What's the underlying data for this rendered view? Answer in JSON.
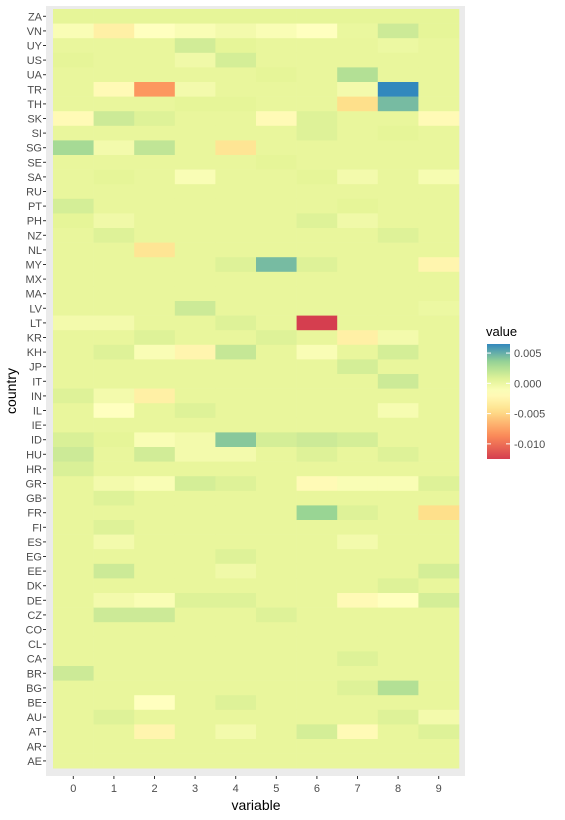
{
  "chart_data": {
    "type": "heatmap",
    "xlabel": "variable",
    "ylabel": "country",
    "legend_title": "value",
    "legend_placement": "right",
    "x_categories": [
      "0",
      "1",
      "2",
      "3",
      "4",
      "5",
      "6",
      "7",
      "8",
      "9"
    ],
    "y_categories": [
      "ZA",
      "VN",
      "UY",
      "US",
      "UA",
      "TR",
      "TH",
      "SK",
      "SI",
      "SG",
      "SE",
      "SA",
      "RU",
      "PT",
      "PH",
      "NZ",
      "NL",
      "MY",
      "MX",
      "MA",
      "LV",
      "LT",
      "KR",
      "KH",
      "JP",
      "IT",
      "IN",
      "IL",
      "IE",
      "ID",
      "HU",
      "HR",
      "GR",
      "GB",
      "FR",
      "FI",
      "ES",
      "EG",
      "EE",
      "DK",
      "DE",
      "CZ",
      "CO",
      "CL",
      "CA",
      "BR",
      "BG",
      "BE",
      "AU",
      "AT",
      "AR",
      "AE"
    ],
    "values": {
      "ZA": [
        0.0005,
        0.0005,
        0.0005,
        0.0005,
        0.0005,
        0.0005,
        0.0005,
        0.0005,
        0.0005,
        0.0005
      ],
      "VN": [
        -0.001,
        -0.003,
        -0.0015,
        -0.001,
        -0.0005,
        -0.001,
        -0.0015,
        0.0002,
        0.0015,
        0.0005
      ],
      "UY": [
        0.0003,
        0.0003,
        0.0003,
        0.0013,
        0.0005,
        0.0003,
        0.0003,
        0.0003,
        0,
        0.0003
      ],
      "US": [
        0.0005,
        0.0003,
        0.0003,
        -0.0003,
        0.0012,
        0.0003,
        0.0003,
        0.0003,
        0.0003,
        0.0003
      ],
      "UA": [
        0.0003,
        0.0003,
        0.0003,
        0.0003,
        0.0003,
        0.0005,
        0.0003,
        0.0025,
        0.0003,
        0.0003
      ],
      "TR": [
        0.0003,
        -0.002,
        -0.008,
        -0.0005,
        0.0003,
        0.0003,
        0.0003,
        -0.0005,
        0.0065,
        0.0003
      ],
      "TH": [
        0.0003,
        0.0003,
        0.0003,
        0.0005,
        0.0005,
        0.0003,
        0.0003,
        -0.0045,
        0.0045,
        0.0003
      ],
      "SK": [
        -0.002,
        0.0015,
        0.0008,
        0.0003,
        0.0003,
        -0.002,
        0.0008,
        0.0003,
        0.0003,
        -0.002
      ],
      "SI": [
        0.0003,
        0.0003,
        0.0003,
        0.0003,
        0.0003,
        0.0003,
        0.0008,
        0.0003,
        0.0005,
        0.0003
      ],
      "SG": [
        0.003,
        -0.0005,
        0.002,
        0.0003,
        -0.004,
        0.0003,
        0.0003,
        0.0003,
        0.0003,
        0.0003
      ],
      "SE": [
        0.0003,
        0.0003,
        0.0003,
        0.0003,
        0.0003,
        0.0005,
        0.0003,
        0.0003,
        0.0003,
        0.0003
      ],
      "SA": [
        0.0003,
        0.0005,
        0.0003,
        -0.001,
        0.0003,
        0.0003,
        0.0005,
        -0.0005,
        0.0003,
        -0.0008
      ],
      "RU": [
        0.0003,
        0.0003,
        0.0003,
        0.0003,
        0.0003,
        0.0003,
        0.0003,
        0.0003,
        0.0003,
        0.0003
      ],
      "PT": [
        0.0012,
        0.0003,
        0.0003,
        0.0003,
        0.0003,
        0.0003,
        0.0003,
        0.0005,
        0.0003,
        0.0003
      ],
      "PH": [
        0.0005,
        -0.0003,
        0.0003,
        0.0003,
        0.0003,
        0.0003,
        0.0008,
        -0.0003,
        0.0003,
        0.0003
      ],
      "NZ": [
        0.0003,
        0.0008,
        0.0003,
        0.0003,
        0.0003,
        0.0003,
        0.0003,
        0.0003,
        0.0008,
        0.0003
      ],
      "NL": [
        0.0003,
        0.0003,
        -0.004,
        0.0003,
        0.0003,
        0.0003,
        0.0003,
        0.0003,
        0.0003,
        0.0003
      ],
      "MY": [
        0.0003,
        0.0003,
        0.0003,
        0.0003,
        0.0008,
        0.0045,
        0.0008,
        0.0003,
        0.0003,
        -0.0025
      ],
      "MX": [
        0.0003,
        0.0003,
        0.0003,
        0.0003,
        0.0003,
        0.0003,
        0.0003,
        0.0003,
        0.0003,
        0.0003
      ],
      "MA": [
        0.0003,
        0.0003,
        0.0003,
        0.0003,
        0.0003,
        0.0003,
        0.0003,
        0.0003,
        0.0003,
        0.0003
      ],
      "LV": [
        0.0003,
        0.0003,
        0.0003,
        0.0015,
        0.0003,
        0.0003,
        0.0003,
        0.0003,
        0.0003,
        0
      ],
      "LT": [
        -0.0005,
        -0.0005,
        0.0003,
        0.0003,
        0.0008,
        0.0003,
        -0.0125,
        0.0003,
        0.0003,
        0.0003
      ],
      "KR": [
        0.0003,
        0.0003,
        0.0008,
        0.0003,
        0.0003,
        0.0008,
        0.0003,
        -0.003,
        -0.0005,
        0.0003
      ],
      "KH": [
        0.0003,
        0.0008,
        -0.001,
        -0.0025,
        0.0018,
        0.0003,
        -0.001,
        0.0003,
        0.0012,
        0.0003
      ],
      "JP": [
        0.0003,
        0.0003,
        0.0003,
        0.0003,
        0.0003,
        0.0003,
        0.0003,
        0.0012,
        0.0003,
        0.0003
      ],
      "IT": [
        0.0003,
        0.0003,
        0.0003,
        0.0003,
        0.0003,
        0.0003,
        0.0003,
        0.0003,
        0.0015,
        0.0003
      ],
      "IN": [
        0.0008,
        -0.0005,
        -0.003,
        0.0003,
        0.0003,
        0.0003,
        0.0003,
        0.0003,
        0.0003,
        0.0003
      ],
      "IL": [
        0.0003,
        -0.0015,
        0.0003,
        0.0008,
        0.0003,
        0.0003,
        0.0003,
        0.0003,
        -0.0008,
        0.0003
      ],
      "IE": [
        0.0003,
        0.0003,
        0.0003,
        0.0003,
        0.0003,
        0.0003,
        0.0003,
        0.0003,
        0.0003,
        0.0003
      ],
      "ID": [
        0.001,
        0.0005,
        -0.001,
        -0.0005,
        0.004,
        0.0012,
        0.0015,
        0.0012,
        0.0003,
        0.0003
      ],
      "HU": [
        0.0015,
        0.0003,
        0.0013,
        -0.0005,
        -0.0005,
        0.0003,
        0.0008,
        0.0003,
        0.0008,
        0.0003
      ],
      "HR": [
        0.001,
        0.0003,
        0.0003,
        0.0003,
        0.0003,
        0.0003,
        0.0003,
        0.0003,
        0.0003,
        0.0003
      ],
      "GR": [
        0.0003,
        -0.0005,
        -0.001,
        0.0012,
        0.0008,
        0.0003,
        -0.002,
        -0.001,
        -0.001,
        0.0008
      ],
      "GB": [
        0.0003,
        0.0008,
        0.0003,
        0.0003,
        0.0003,
        0.0003,
        0.0003,
        0.0003,
        0.0003,
        0.0003
      ],
      "FR": [
        0.0003,
        0.0003,
        0.0003,
        0.0003,
        0.0003,
        0.0003,
        0.0035,
        0.0008,
        0.0003,
        -0.0045
      ],
      "FI": [
        0.0003,
        0.0008,
        0.0003,
        0.0003,
        0.0003,
        0.0003,
        0.0003,
        0.0003,
        0.0003,
        0.0003
      ],
      "ES": [
        0.0003,
        -0.0005,
        0.0003,
        0.0003,
        0.0003,
        0.0003,
        0.0003,
        -0.0005,
        0.0003,
        0.0003
      ],
      "EG": [
        0.0003,
        0.0003,
        0.0003,
        0.0003,
        0.0008,
        0.0003,
        0.0003,
        0.0003,
        0.0003,
        0.0003
      ],
      "EE": [
        0.0003,
        0.0015,
        0.0003,
        0.0003,
        -0.0003,
        0.0003,
        0.0003,
        0.0003,
        0.0003,
        0.0012
      ],
      "DK": [
        0.0003,
        0.0003,
        0.0003,
        0.0003,
        0.0003,
        0.0003,
        0.0003,
        0.0003,
        0.0008,
        0.0003
      ],
      "DE": [
        0.0003,
        -0.0005,
        -0.001,
        0.0008,
        0.0008,
        0.0003,
        0.0003,
        -0.002,
        -0.0015,
        0.0012
      ],
      "CZ": [
        0.0003,
        0.0015,
        0.0015,
        0.0003,
        0.0003,
        0.0008,
        0.0003,
        0.0003,
        0.0003,
        0.0003
      ],
      "CO": [
        0.0003,
        0.0003,
        0.0003,
        0.0003,
        0.0003,
        0.0003,
        0.0003,
        0.0003,
        0.0003,
        0.0003
      ],
      "CL": [
        0.0003,
        0.0003,
        0.0003,
        0.0003,
        0.0003,
        0.0003,
        0.0003,
        0.0003,
        0.0003,
        0.0003
      ],
      "CA": [
        0.0003,
        0.0003,
        0.0003,
        0.0003,
        0.0003,
        0.0003,
        0.0003,
        0.0008,
        0.0003,
        0.0003
      ],
      "BR": [
        0.0015,
        0.0003,
        0.0003,
        0.0003,
        0.0003,
        0.0003,
        0.0003,
        0.0003,
        0.0003,
        0.0003
      ],
      "BG": [
        0.0003,
        0.0003,
        0.0003,
        0.0003,
        0.0003,
        0.0003,
        0.0003,
        0.0008,
        0.0025,
        0.0003
      ],
      "BE": [
        0.0003,
        0.0003,
        -0.0015,
        0.0003,
        0.0008,
        0.0003,
        0.0003,
        0.0003,
        0.0003,
        0.0003
      ],
      "AU": [
        0.0003,
        0.0008,
        0.0003,
        0.0003,
        0.0003,
        0.0003,
        0.0003,
        0.0003,
        0.0008,
        -0.0005
      ],
      "AT": [
        0.0003,
        0.0003,
        -0.0025,
        0.0003,
        -0.0005,
        0.0003,
        0.0012,
        -0.002,
        0.0003,
        0.0008
      ],
      "AR": [
        0.0003,
        0.0003,
        0.0003,
        0.0003,
        0.0003,
        0.0003,
        0.0003,
        0.0003,
        0.0003,
        0.0003
      ],
      "AE": [
        0.0003,
        0.0003,
        0.0003,
        0.0003,
        0.0003,
        0.0003,
        0.0003,
        0.0003,
        0.0003,
        0.0003
      ]
    },
    "color_scale": {
      "low": -0.0125,
      "high": 0.0065,
      "palette": "Spectral",
      "stops": [
        {
          "value": -0.0125,
          "color": "#d53e4f"
        },
        {
          "value": -0.0085,
          "color": "#fc8d59"
        },
        {
          "value": -0.0045,
          "color": "#fee08b"
        },
        {
          "value": -0.0015,
          "color": "#ffffbf"
        },
        {
          "value": 0.0005,
          "color": "#e6f598"
        },
        {
          "value": 0.0035,
          "color": "#99d594"
        },
        {
          "value": 0.0065,
          "color": "#3288bd"
        }
      ]
    },
    "legend_ticks": [
      {
        "value": 0.005,
        "label": "0.005"
      },
      {
        "value": 0,
        "label": "0.000"
      },
      {
        "value": -0.005,
        "label": "-0.005"
      },
      {
        "value": -0.01,
        "label": "-0.010"
      }
    ]
  }
}
